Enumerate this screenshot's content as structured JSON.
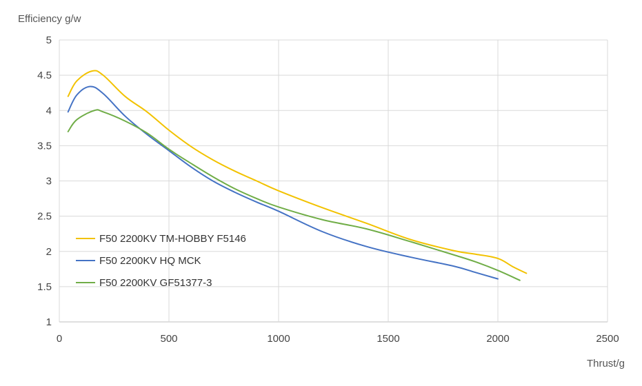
{
  "chart_data": {
    "type": "line",
    "title": "",
    "ylabel": "Efficiency g/w",
    "xlabel": "Thrust/g",
    "xlim": [
      0,
      2500
    ],
    "ylim": [
      1,
      5
    ],
    "xticks": [
      0,
      500,
      1000,
      1500,
      2000,
      2500
    ],
    "yticks": [
      1,
      1.5,
      2,
      2.5,
      3,
      3.5,
      4,
      4.5,
      5
    ],
    "ytick_labels": [
      "1",
      "1.5",
      "2",
      "2.5",
      "3",
      "3.5",
      "4",
      "4.5",
      "5"
    ],
    "xtick_labels": [
      "0",
      "500",
      "1000",
      "1500",
      "2000",
      "2500"
    ],
    "grid": true,
    "legend_position": "lower-left",
    "series": [
      {
        "name": "F50 2200KV TM-HOBBY F5146",
        "color": "#F2C200",
        "x": [
          40,
          80,
          150,
          200,
          300,
          400,
          500,
          600,
          700,
          800,
          900,
          1000,
          1200,
          1400,
          1600,
          1800,
          1900,
          2000,
          2070,
          2130
        ],
        "y": [
          4.2,
          4.42,
          4.56,
          4.5,
          4.2,
          3.98,
          3.72,
          3.49,
          3.3,
          3.14,
          3.0,
          2.86,
          2.62,
          2.4,
          2.17,
          2.01,
          1.96,
          1.9,
          1.78,
          1.69
        ]
      },
      {
        "name": "F50 2200KV HQ MCK",
        "color": "#4472C4",
        "x": [
          40,
          80,
          140,
          200,
          300,
          400,
          500,
          600,
          700,
          800,
          900,
          1000,
          1200,
          1400,
          1600,
          1800,
          1900,
          2000
        ],
        "y": [
          3.98,
          4.22,
          4.34,
          4.24,
          3.92,
          3.66,
          3.43,
          3.2,
          3.0,
          2.84,
          2.7,
          2.57,
          2.28,
          2.07,
          1.92,
          1.79,
          1.7,
          1.61
        ]
      },
      {
        "name": "F50 2200KV GF51377-3",
        "color": "#70AD47",
        "x": [
          40,
          80,
          160,
          200,
          300,
          400,
          500,
          600,
          700,
          800,
          900,
          1000,
          1200,
          1400,
          1600,
          1800,
          1900,
          2000,
          2100
        ],
        "y": [
          3.7,
          3.87,
          4.0,
          3.98,
          3.85,
          3.68,
          3.45,
          3.25,
          3.06,
          2.89,
          2.75,
          2.63,
          2.45,
          2.32,
          2.14,
          1.95,
          1.85,
          1.73,
          1.59
        ]
      }
    ]
  },
  "colors": {
    "grid": "#D9D9D9",
    "axis": "#BFBFBF",
    "text": "#444444"
  }
}
